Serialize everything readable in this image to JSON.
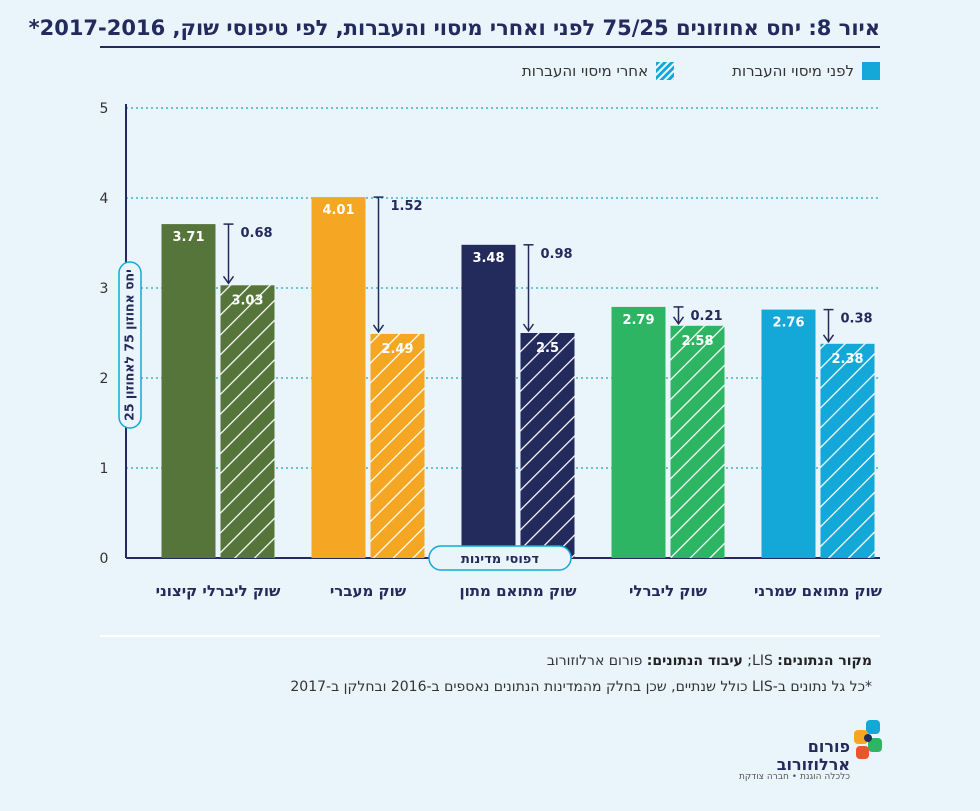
{
  "figure": {
    "title": "איור 8: יחס אחוזונים 75/25 לפני ואחרי מיסוי והעברות, לפי טיפוסי שוק, 2017-2016*",
    "source_label": "מקור הנתונים:",
    "source_value": "LIS;",
    "processing_label": "עיבוד הנתונים:",
    "processing_value": "פורום ארלוזורוב",
    "note": "*כל גל נתונים ב-LIS כולל שנתיים, שכן בחלק מהמדינות הנתונים נאספים ב-2016 ובחלקן ב-2017"
  },
  "legend": {
    "before": "לפני מיסוי והעברות",
    "after": "אחרי מיסוי והעברות"
  },
  "logo": {
    "line1": "פורום",
    "line2": "ארלוזורוב",
    "tagline": "כלכלה הוגנת • חברה צודקת",
    "colors": [
      "#13a8d8",
      "#f5a623",
      "#2db563",
      "#232a5c",
      "#e8562a"
    ]
  },
  "chart_data": {
    "type": "bar",
    "ylabel": "יחס אחוזון 75 לאחוזון 25",
    "xlabel": "דפוסי מדינות",
    "ylim": [
      0,
      5
    ],
    "yticks": [
      0,
      1,
      2,
      3,
      4,
      5
    ],
    "grid": true,
    "legend_position": "top",
    "categories": [
      "שוק ליברלי קיצוני",
      "שוק מעברי",
      "שוק מתואם מתון",
      "שוק ליברלי",
      "שוק מתואם שמרני"
    ],
    "colors": [
      "#55753b",
      "#f5a623",
      "#232a5c",
      "#2db563",
      "#13a8d8"
    ],
    "series": [
      {
        "name": "לפני מיסוי והעברות",
        "values": [
          3.71,
          4.01,
          3.48,
          2.79,
          2.76
        ]
      },
      {
        "name": "אחרי מיסוי והעברות",
        "values": [
          3.03,
          2.49,
          2.5,
          2.58,
          2.38
        ]
      }
    ],
    "differences": [
      0.68,
      1.52,
      0.98,
      0.21,
      0.38
    ]
  }
}
